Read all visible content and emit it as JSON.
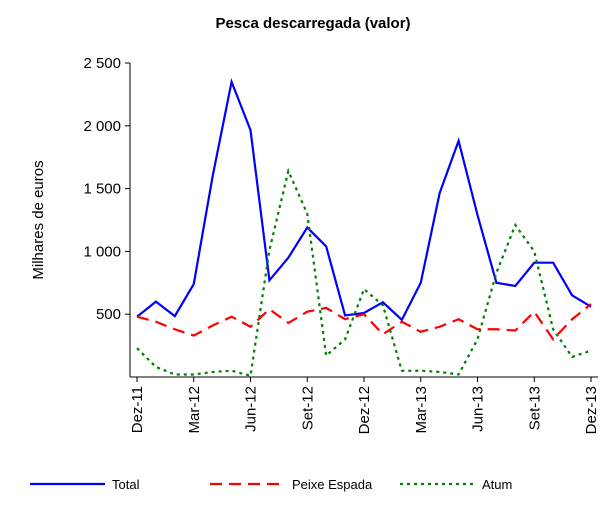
{
  "chart_data": {
    "type": "line",
    "title": "Pesca descarregada (valor)",
    "y_label": "Milhares de euros",
    "categories": [
      "Dez-11",
      null,
      null,
      "Mar-12",
      null,
      null,
      "Jun-12",
      null,
      null,
      "Set-12",
      null,
      null,
      "Dez-12",
      null,
      null,
      "Mar-13",
      null,
      null,
      "Jun-13",
      null,
      null,
      "Set-13",
      null,
      null,
      "Dez-13"
    ],
    "series": [
      {
        "name": "Total",
        "color": "#0000ff",
        "dash": "solid",
        "values": [
          480,
          600,
          485,
          740,
          1600,
          2350,
          1965,
          770,
          950,
          1190,
          1040,
          490,
          510,
          595,
          455,
          750,
          1465,
          1880,
          1290,
          750,
          725,
          910,
          910,
          650,
          560
        ]
      },
      {
        "name": "Peixe Espada",
        "color": "#ff0000",
        "dash": "dashed",
        "values": [
          480,
          440,
          380,
          330,
          410,
          480,
          400,
          540,
          430,
          520,
          550,
          460,
          500,
          340,
          440,
          360,
          400,
          460,
          380,
          380,
          370,
          520,
          300,
          460,
          580
        ]
      },
      {
        "name": "Atum",
        "color": "#008000",
        "dash": "dotted",
        "values": [
          230,
          80,
          20,
          20,
          40,
          50,
          10,
          1010,
          1640,
          1300,
          170,
          300,
          700,
          570,
          50,
          50,
          40,
          20,
          300,
          830,
          1210,
          1000,
          380,
          160,
          210
        ]
      }
    ],
    "ylim": [
      0,
      2500
    ],
    "yticks": [
      500,
      {
        "value": 1000,
        "label": "1 000"
      },
      {
        "value": 1500,
        "label": "1 500"
      },
      {
        "value": 2000,
        "label": "2 000"
      },
      {
        "value": 2500,
        "label": "2 500"
      }
    ],
    "grid": false,
    "legend": "bottom"
  }
}
